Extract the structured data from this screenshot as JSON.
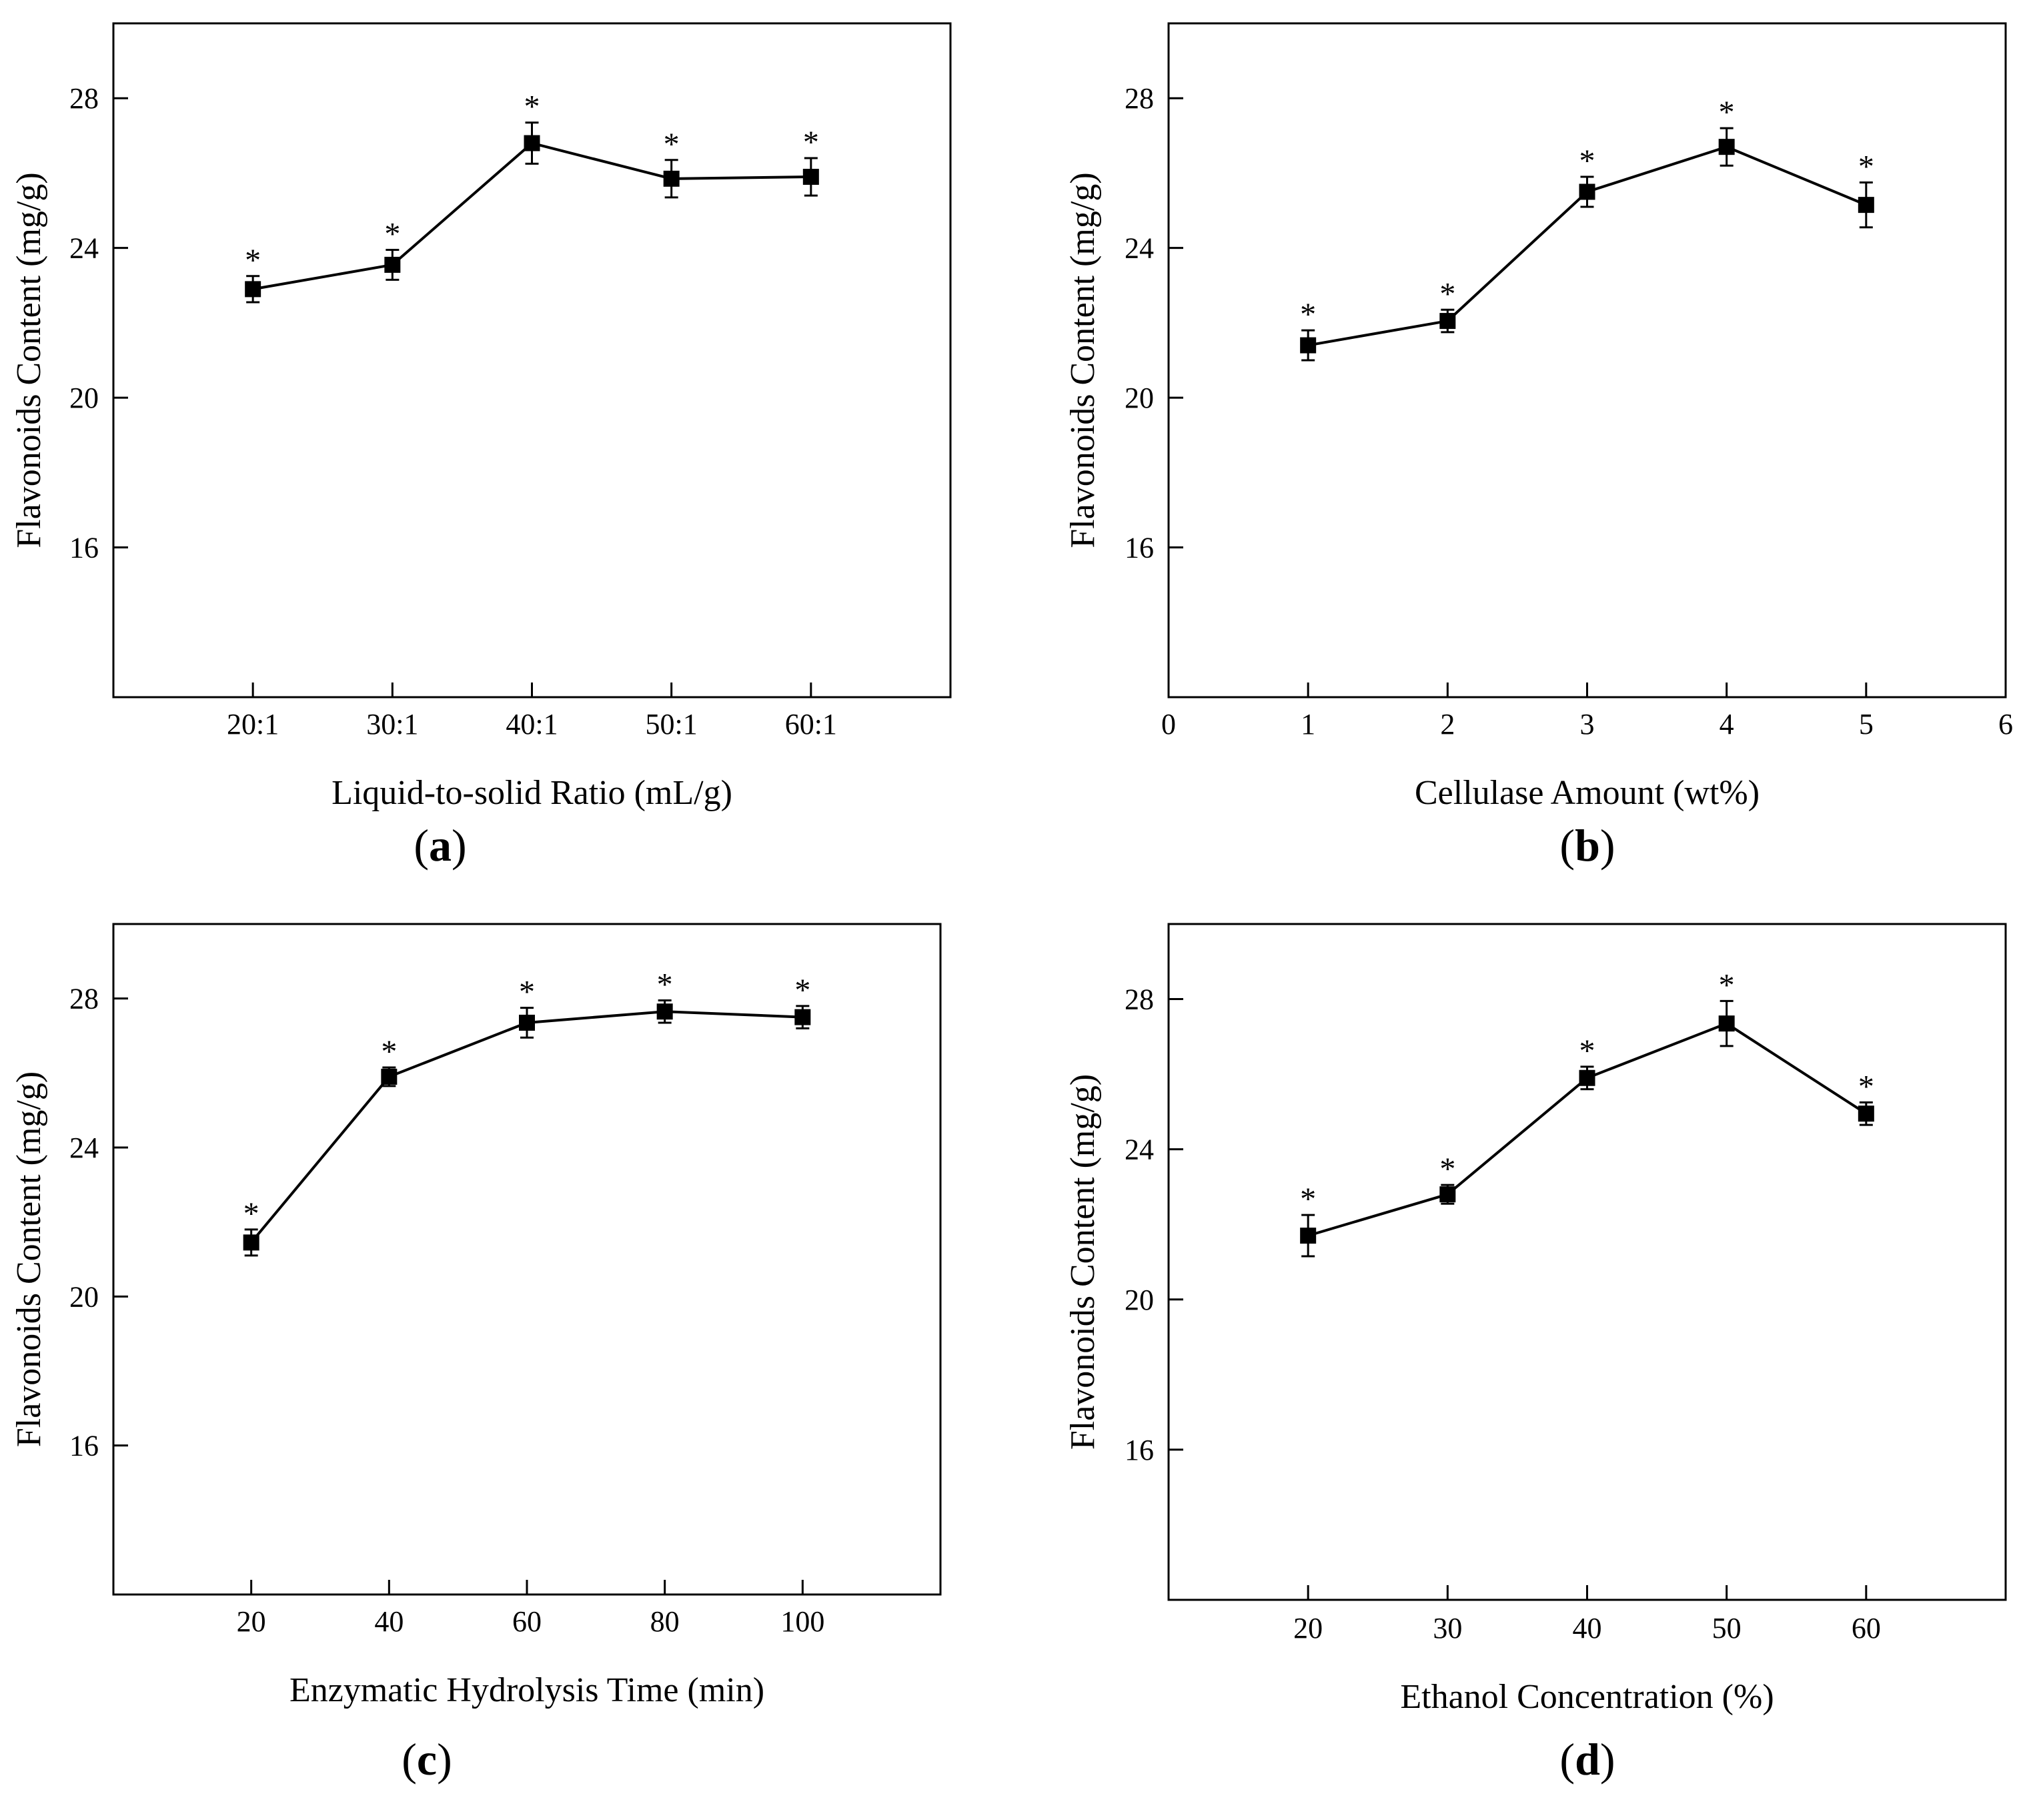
{
  "figure": {
    "panels": [
      "(a)",
      "(b)",
      "(c)",
      "(d)"
    ]
  },
  "chart_data": [
    {
      "type": "line",
      "panel_label": "(a)",
      "xlabel": "Liquid-to-solid Ratio (mL/g)",
      "ylabel": "Flavonoids Content (mg/g)",
      "x_scale": "categorical",
      "categories": [
        "20:1",
        "30:1",
        "40:1",
        "50:1",
        "60:1"
      ],
      "x": [
        1,
        2,
        3,
        4,
        5
      ],
      "xlim": [
        0,
        6
      ],
      "x_ticks": [
        1,
        2,
        3,
        4,
        5
      ],
      "x_tick_labels": [
        "20:1",
        "30:1",
        "40:1",
        "50:1",
        "60:1"
      ],
      "ylim": [
        12,
        30
      ],
      "y_ticks": [
        16,
        20,
        24,
        28
      ],
      "y_tick_labels": [
        "16",
        "20",
        "24",
        "28"
      ],
      "values": [
        22.9,
        23.55,
        26.8,
        25.85,
        25.9
      ],
      "errors": [
        0.35,
        0.4,
        0.55,
        0.5,
        0.5
      ],
      "significance": [
        "*",
        "*",
        "*",
        "*",
        "*"
      ],
      "marker": "square"
    },
    {
      "type": "line",
      "panel_label": "(b)",
      "xlabel": "Cellulase Amount (wt%)",
      "ylabel": "Flavonoids Content (mg/g)",
      "x_scale": "numeric",
      "x": [
        1,
        2,
        3,
        4,
        5
      ],
      "xlim": [
        0,
        6
      ],
      "x_ticks": [
        0,
        1,
        2,
        3,
        4,
        5,
        6
      ],
      "x_tick_labels": [
        "0",
        "1",
        "2",
        "3",
        "4",
        "5",
        "6"
      ],
      "ylim": [
        12,
        30
      ],
      "y_ticks": [
        16,
        20,
        24,
        28
      ],
      "y_tick_labels": [
        "16",
        "20",
        "24",
        "28"
      ],
      "values": [
        21.4,
        22.05,
        25.5,
        26.7,
        25.15
      ],
      "errors": [
        0.4,
        0.3,
        0.4,
        0.5,
        0.6
      ],
      "significance": [
        "*",
        "*",
        "*",
        "*",
        "*"
      ],
      "marker": "square"
    },
    {
      "type": "line",
      "panel_label": "(c)",
      "xlabel": "Enzymatic Hydrolysis Time (min)",
      "ylabel": "Flavonoids Content (mg/g)",
      "x_scale": "numeric",
      "x": [
        20,
        40,
        60,
        80,
        100
      ],
      "xlim": [
        0,
        120
      ],
      "x_ticks": [
        20,
        40,
        60,
        80,
        100
      ],
      "x_tick_labels": [
        "20",
        "40",
        "60",
        "80",
        "100"
      ],
      "ylim": [
        12,
        30
      ],
      "y_ticks": [
        16,
        20,
        24,
        28
      ],
      "y_tick_labels": [
        "16",
        "20",
        "24",
        "28"
      ],
      "values": [
        21.45,
        25.9,
        27.35,
        27.65,
        27.5
      ],
      "errors": [
        0.35,
        0.25,
        0.4,
        0.3,
        0.3
      ],
      "significance": [
        "*",
        "*",
        "*",
        "*",
        "*"
      ],
      "marker": "square"
    },
    {
      "type": "line",
      "panel_label": "(d)",
      "xlabel": "Ethanol Concentration (%)",
      "ylabel": "Flavonoids Content (mg/g)",
      "x_scale": "numeric",
      "x": [
        20,
        30,
        40,
        50,
        60
      ],
      "xlim": [
        10,
        70
      ],
      "x_ticks": [
        20,
        30,
        40,
        50,
        60
      ],
      "x_tick_labels": [
        "20",
        "30",
        "40",
        "50",
        "60"
      ],
      "ylim": [
        12,
        30
      ],
      "y_ticks": [
        16,
        20,
        24,
        28
      ],
      "y_tick_labels": [
        "16",
        "20",
        "24",
        "28"
      ],
      "values": [
        21.7,
        22.8,
        25.9,
        27.35,
        24.95
      ],
      "errors": [
        0.55,
        0.25,
        0.3,
        0.6,
        0.3
      ],
      "significance": [
        "*",
        "*",
        "*",
        "*",
        "*"
      ],
      "marker": "square"
    }
  ]
}
